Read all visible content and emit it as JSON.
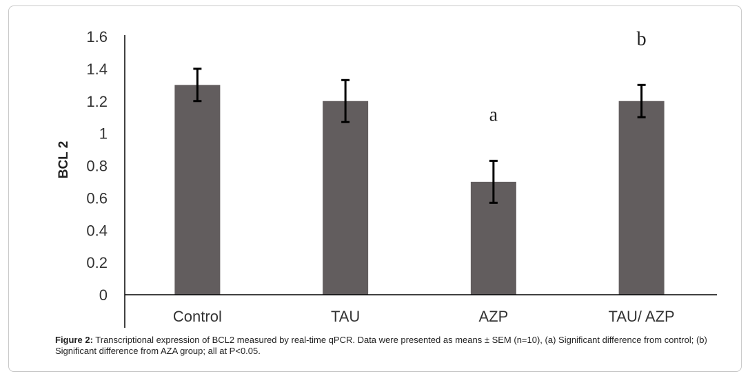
{
  "chart_data": {
    "type": "bar",
    "categories": [
      "Control",
      "TAU",
      "AZP",
      "TAU/ AZP"
    ],
    "values": [
      1.3,
      1.2,
      0.7,
      1.2
    ],
    "errors": [
      0.1,
      0.13,
      0.13,
      0.1
    ],
    "annotations": [
      "",
      "",
      "a",
      "b"
    ],
    "title": "",
    "xlabel": "",
    "ylabel": "BCL 2",
    "ylim": [
      0,
      1.6
    ],
    "yticks": [
      "0",
      "0.2",
      "0.4",
      "0.6",
      "0.8",
      "1",
      "1.2",
      "1.4",
      "1.6"
    ],
    "bar_color": "#625d5e",
    "grid": false
  },
  "caption": {
    "label": "Figure 2:",
    "text": " Transcriptional expression of BCL2 measured by real-time qPCR. Data were presented as means ± SEM (n=10), (a) Significant difference from control; (b) Significant difference from AZA group; all at P<0.05."
  }
}
